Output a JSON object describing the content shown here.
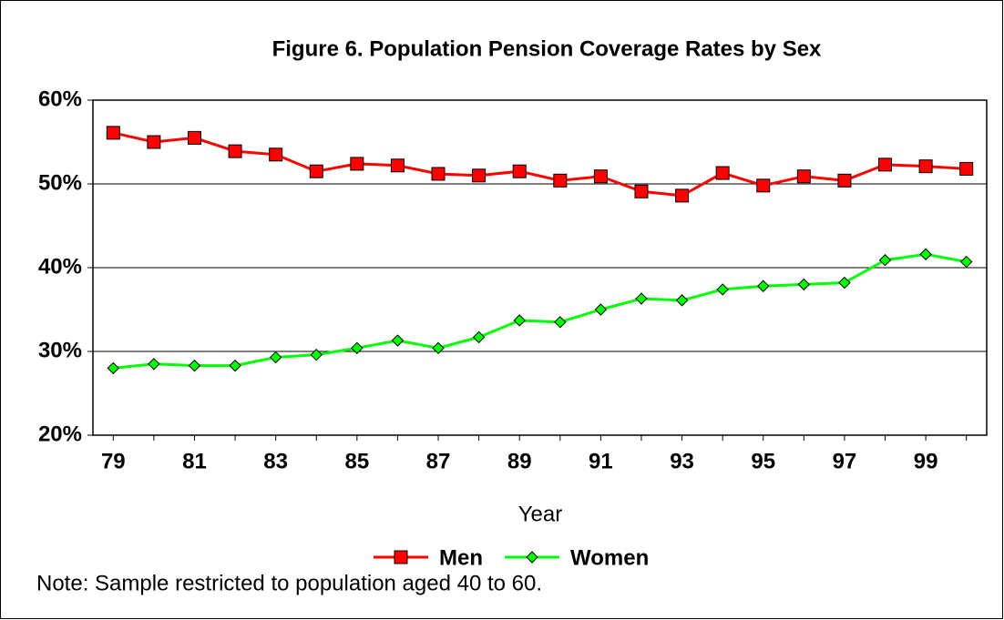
{
  "chart_data": {
    "type": "line",
    "title": "Figure 6.  Population Pension Coverage Rates by Sex",
    "x_label": "Year",
    "note": "Note: Sample restricted to population aged 40 to 60.",
    "categories": [
      "79",
      null,
      "81",
      null,
      "83",
      null,
      "85",
      null,
      "87",
      null,
      "89",
      null,
      "91",
      null,
      "93",
      null,
      "95",
      null,
      "97",
      null,
      "99",
      null
    ],
    "series": [
      {
        "name": "Men",
        "color": "#ff0000",
        "marker": "square",
        "values": [
          56.1,
          55.0,
          55.5,
          53.9,
          53.5,
          51.5,
          52.4,
          52.2,
          51.2,
          51.0,
          51.5,
          50.4,
          50.9,
          49.1,
          48.6,
          51.3,
          49.8,
          50.9,
          50.4,
          52.3,
          52.1,
          51.8
        ]
      },
      {
        "name": "Women",
        "color": "#00ff00",
        "marker": "diamond",
        "values": [
          28.0,
          28.5,
          28.3,
          28.3,
          29.3,
          29.6,
          30.4,
          31.3,
          30.4,
          31.7,
          33.7,
          33.5,
          35.0,
          36.3,
          36.1,
          37.4,
          37.8,
          38.0,
          38.2,
          40.9,
          41.6,
          40.7
        ]
      }
    ],
    "ylim": [
      20,
      60
    ],
    "yticks": [
      {
        "value": 20,
        "label": "20%"
      },
      {
        "value": 30,
        "label": "30%"
      },
      {
        "value": 40,
        "label": "40%"
      },
      {
        "value": 50,
        "label": "50%"
      },
      {
        "value": 60,
        "label": "60%"
      }
    ],
    "grid": true,
    "legend": "bottom"
  }
}
